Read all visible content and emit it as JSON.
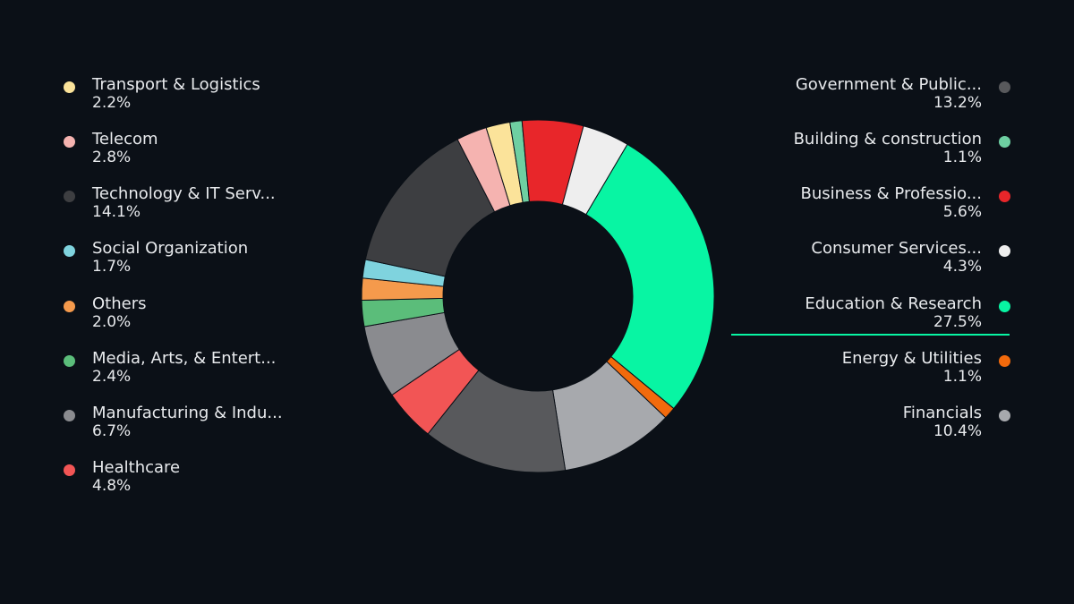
{
  "chart_data": {
    "type": "pie",
    "title": "",
    "slices": [
      {
        "label": "Education & Research",
        "value": 27.5,
        "color": "#08f5a3"
      },
      {
        "label": "Energy & Utilities",
        "value": 1.1,
        "color": "#f26a0c"
      },
      {
        "label": "Financials",
        "value": 10.4,
        "color": "#a7a9ad"
      },
      {
        "label": "Government & Public...",
        "value": 13.2,
        "color": "#58595c"
      },
      {
        "label": "Healthcare",
        "value": 4.8,
        "color": "#f25555"
      },
      {
        "label": "Manufacturing & Indu...",
        "value": 6.7,
        "color": "#8a8b8f"
      },
      {
        "label": "Media, Arts, & Entert...",
        "value": 2.4,
        "color": "#5bbd7a"
      },
      {
        "label": "Others",
        "value": 2.0,
        "color": "#f59a4c"
      },
      {
        "label": "Social Organization",
        "value": 1.7,
        "color": "#7fd3de"
      },
      {
        "label": "Technology & IT Serv...",
        "value": 14.1,
        "color": "#3d3e41"
      },
      {
        "label": "Telecom",
        "value": 2.8,
        "color": "#f5b3b0"
      },
      {
        "label": "Transport & Logistics",
        "value": 2.2,
        "color": "#fbe39a"
      },
      {
        "label": "Building & construction",
        "value": 1.1,
        "color": "#6ecfa2"
      },
      {
        "label": "Business & Professio...",
        "value": 5.6,
        "color": "#e8262a"
      },
      {
        "label": "Consumer Services...",
        "value": 4.3,
        "color": "#eeeeee"
      }
    ],
    "highlighted": "Education & Research"
  },
  "legend_left": [
    {
      "label": "Transport & Logistics",
      "pct": "2.2%",
      "color": "#fbe39a",
      "icon": "dot"
    },
    {
      "label": "Telecom",
      "pct": "2.8%",
      "color": "#f5b3b0",
      "icon": "dot"
    },
    {
      "label": "Technology & IT Serv...",
      "pct": "14.1%",
      "color": "#3d3e41",
      "icon": "dot"
    },
    {
      "label": "Social Organization",
      "pct": "1.7%",
      "color": "#7fd3de",
      "icon": "dot"
    },
    {
      "label": "Others",
      "pct": "2.0%",
      "color": "#f59a4c",
      "icon": "dot"
    },
    {
      "label": "Media, Arts, & Entert...",
      "pct": "2.4%",
      "color": "#5bbd7a",
      "icon": "dot"
    },
    {
      "label": "Manufacturing & Indu...",
      "pct": "6.7%",
      "color": "#8a8b8f",
      "icon": "dot"
    },
    {
      "label": "Healthcare",
      "pct": "4.8%",
      "color": "#f25555",
      "icon": "dot"
    }
  ],
  "legend_right": [
    {
      "label": "Government & Public...",
      "pct": "13.2%",
      "color": "#58595c",
      "icon": "dot"
    },
    {
      "label": "Building & construction",
      "pct": "1.1%",
      "color": "#6ecfa2",
      "icon": "dot"
    },
    {
      "label": "Business & Professio...",
      "pct": "5.6%",
      "color": "#e8262a",
      "icon": "dot"
    },
    {
      "label": "Consumer Services...",
      "pct": "4.3%",
      "color": "#eeeeee",
      "icon": "dot"
    },
    {
      "label": "Education & Research",
      "pct": "27.5%",
      "color": "#08f5a3",
      "icon": "dot"
    },
    {
      "label": "Energy & Utilities",
      "pct": "1.1%",
      "color": "#f26a0c",
      "icon": "dot"
    },
    {
      "label": "Financials",
      "pct": "10.4%",
      "color": "#a7a9ad",
      "icon": "dot"
    }
  ]
}
